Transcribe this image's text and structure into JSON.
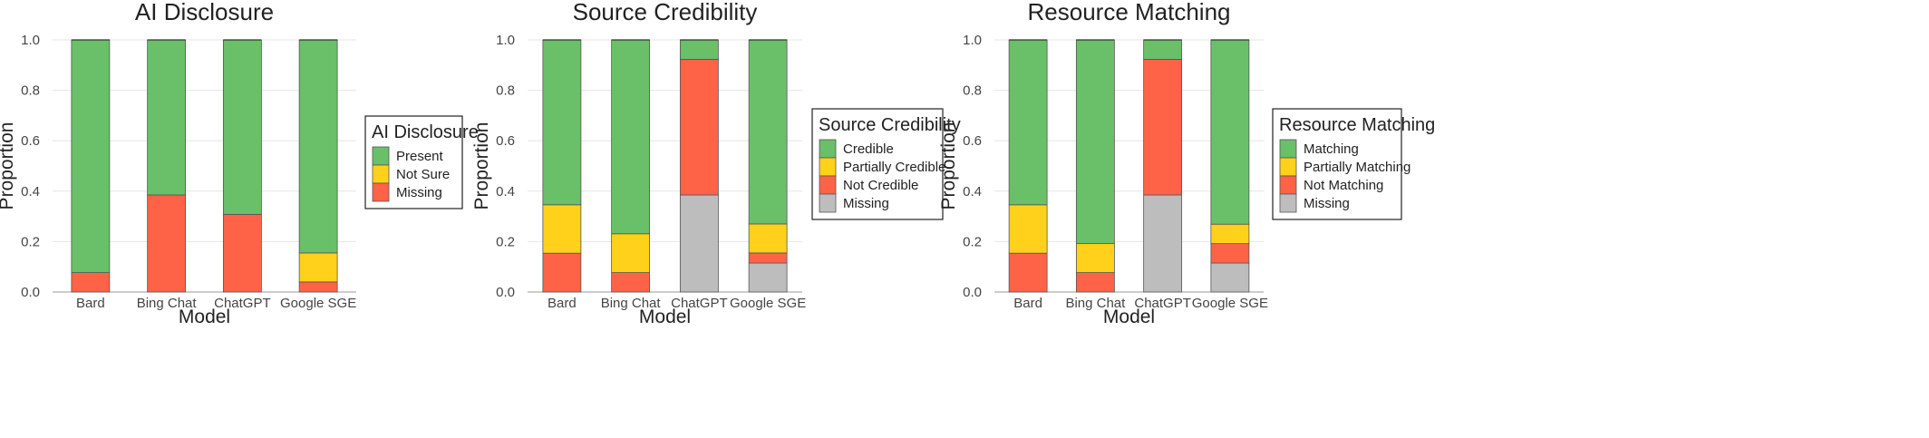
{
  "colors": {
    "green": "#6abf69",
    "yellow": "#ffd11a",
    "red": "#ff6347",
    "gray": "#bdbdbd"
  },
  "chart_data": [
    {
      "type": "bar",
      "stacked": true,
      "title": "AI Disclosure",
      "xlabel": "Model",
      "ylabel": "Proportion",
      "ylim": [
        0,
        1
      ],
      "yticks": [
        "0.0",
        "0.2",
        "0.4",
        "0.6",
        "0.8",
        "1.0"
      ],
      "grid": true,
      "categories": [
        "Bard",
        "Bing Chat",
        "ChatGPT",
        "Google SGE"
      ],
      "legend": {
        "title": "AI Disclosure",
        "placement": "right"
      },
      "series": [
        {
          "name": "Missing",
          "color": "red",
          "values": [
            0.077,
            0.385,
            0.308,
            0.04
          ]
        },
        {
          "name": "Not Sure",
          "color": "yellow",
          "values": [
            0,
            0,
            0,
            0.115
          ]
        },
        {
          "name": "Present",
          "color": "green",
          "values": [
            0.923,
            0.615,
            0.692,
            0.845
          ]
        }
      ]
    },
    {
      "type": "bar",
      "stacked": true,
      "title": "Source Credibility",
      "xlabel": "Model",
      "ylabel": "Proportion",
      "ylim": [
        0,
        1
      ],
      "yticks": [
        "0.0",
        "0.2",
        "0.4",
        "0.6",
        "0.8",
        "1.0"
      ],
      "grid": true,
      "categories": [
        "Bard",
        "Bing Chat",
        "ChatGPT",
        "Google SGE"
      ],
      "legend": {
        "title": "Source Credibility",
        "placement": "right"
      },
      "series": [
        {
          "name": "Missing",
          "color": "gray",
          "values": [
            0,
            0,
            0.385,
            0.115
          ]
        },
        {
          "name": "Not Credible",
          "color": "red",
          "values": [
            0.154,
            0.077,
            0.538,
            0.04
          ]
        },
        {
          "name": "Partially Credible",
          "color": "yellow",
          "values": [
            0.192,
            0.154,
            0,
            0.115
          ]
        },
        {
          "name": "Credible",
          "color": "green",
          "values": [
            0.654,
            0.769,
            0.077,
            0.73
          ]
        }
      ]
    },
    {
      "type": "bar",
      "stacked": true,
      "title": "Resource Matching",
      "xlabel": "Model",
      "ylabel": "Proportion",
      "ylim": [
        0,
        1
      ],
      "yticks": [
        "0.0",
        "0.2",
        "0.4",
        "0.6",
        "0.8",
        "1.0"
      ],
      "grid": true,
      "categories": [
        "Bard",
        "Bing Chat",
        "ChatGPT",
        "Google SGE"
      ],
      "legend": {
        "title": "Resource Matching",
        "placement": "right"
      },
      "series": [
        {
          "name": "Missing",
          "color": "gray",
          "values": [
            0,
            0,
            0.385,
            0.115
          ]
        },
        {
          "name": "Not Matching",
          "color": "red",
          "values": [
            0.154,
            0.077,
            0.538,
            0.077
          ]
        },
        {
          "name": "Partially Matching",
          "color": "yellow",
          "values": [
            0.192,
            0.115,
            0,
            0.077
          ]
        },
        {
          "name": "Matching",
          "color": "green",
          "values": [
            0.654,
            0.808,
            0.077,
            0.731
          ]
        }
      ]
    }
  ]
}
